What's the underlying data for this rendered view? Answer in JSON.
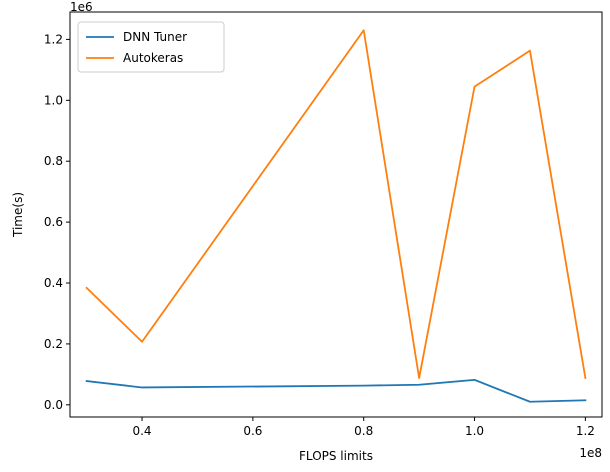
{
  "chart_data": {
    "type": "line",
    "title": "",
    "xlabel": "FLOPS limits",
    "ylabel": "Time(s)",
    "x_offset_label": "1e8",
    "y_offset_label": "1e6",
    "x_scale": 100000000,
    "y_scale": 1000000,
    "xlim": [
      27000000,
      123000000
    ],
    "ylim": [
      -40000,
      1290000
    ],
    "x_ticks": [
      {
        "value": 40000000,
        "label": "0.4"
      },
      {
        "value": 60000000,
        "label": "0.6"
      },
      {
        "value": 80000000,
        "label": "0.8"
      },
      {
        "value": 100000000,
        "label": "1.0"
      },
      {
        "value": 120000000,
        "label": "1.2"
      }
    ],
    "y_ticks": [
      {
        "value": 0,
        "label": "0.0"
      },
      {
        "value": 200000,
        "label": "0.2"
      },
      {
        "value": 400000,
        "label": "0.4"
      },
      {
        "value": 600000,
        "label": "0.6"
      },
      {
        "value": 800000,
        "label": "0.8"
      },
      {
        "value": 1000000,
        "label": "1.0"
      },
      {
        "value": 1200000,
        "label": "1.2"
      }
    ],
    "grid": false,
    "legend_position": "top-left",
    "series": [
      {
        "name": "DNN Tuner",
        "color": "#1f77b4",
        "x": [
          30000000,
          40000000,
          80000000,
          90000000,
          100000000,
          110000000,
          120000000
        ],
        "y": [
          78000,
          57000,
          63000,
          66000,
          82000,
          10000,
          15000
        ]
      },
      {
        "name": "Autokeras",
        "color": "#ff7f0e",
        "x": [
          30000000,
          40000000,
          80000000,
          90000000,
          100000000,
          110000000,
          120000000
        ],
        "y": [
          384000,
          207000,
          1230000,
          88000,
          1045000,
          1163000,
          88000
        ]
      }
    ]
  }
}
